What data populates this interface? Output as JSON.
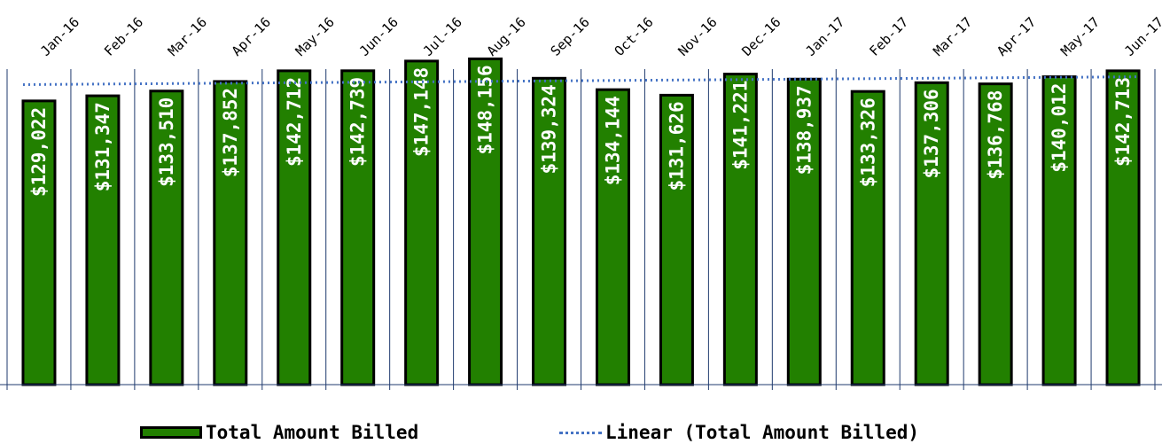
{
  "chart_data": {
    "type": "bar",
    "categories": [
      "Jan-16",
      "Feb-16",
      "Mar-16",
      "Apr-16",
      "May-16",
      "Jun-16",
      "Jul-16",
      "Aug-16",
      "Sep-16",
      "Oct-16",
      "Nov-16",
      "Dec-16",
      "Jan-17",
      "Feb-17",
      "Mar-17",
      "Apr-17",
      "May-17",
      "Jun-17"
    ],
    "series": [
      {
        "name": "Total Amount Billed",
        "values": [
          129022,
          131347,
          133510,
          137852,
          142712,
          142739,
          147148,
          148156,
          139324,
          134144,
          131626,
          141221,
          138937,
          133326,
          137306,
          136768,
          140012,
          142713
        ],
        "data_labels": [
          "$129,022",
          "$131,347",
          "$133,510",
          "$137,852",
          "$142,712",
          "$142,739",
          "$147,148",
          "$148,156",
          "$139,324",
          "$134,144",
          "$131,626",
          "$141,221",
          "$138,937",
          "$133,326",
          "$137,306",
          "$136,768",
          "$140,012",
          "$142,713"
        ]
      }
    ],
    "trendline": {
      "name": "Linear (Total Amount Billed)",
      "type": "linear"
    },
    "ylim": [
      0,
      160000
    ],
    "legend_position": "bottom",
    "gridlines": "vertical",
    "colors": {
      "bar": "#228000",
      "bar_border": "#000000",
      "trendline": "#4472C4",
      "grid": "#1F3A6E",
      "data_label": "#ffffff"
    }
  },
  "legend": {
    "bar_label": "Total Amount Billed",
    "trend_label": "Linear (Total Amount Billed)"
  }
}
